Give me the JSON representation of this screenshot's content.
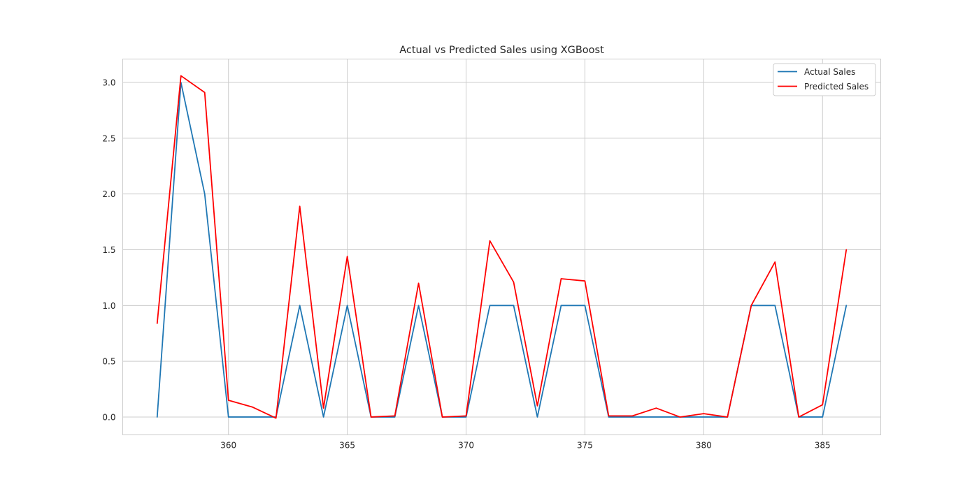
{
  "chart_data": {
    "type": "line",
    "title": "Actual vs Predicted Sales using XGBoost",
    "xlabel": "",
    "ylabel": "",
    "xlim": [
      355.55,
      387.45
    ],
    "ylim": [
      -0.16,
      3.21
    ],
    "x_ticks": [
      360,
      365,
      370,
      375,
      380,
      385
    ],
    "y_ticks": [
      0.0,
      0.5,
      1.0,
      1.5,
      2.0,
      2.5,
      3.0
    ],
    "grid": true,
    "legend_position": "top-right",
    "x": [
      357,
      358,
      359,
      360,
      361,
      362,
      363,
      364,
      365,
      366,
      367,
      368,
      369,
      370,
      371,
      372,
      373,
      374,
      375,
      376,
      377,
      378,
      379,
      380,
      381,
      382,
      383,
      384,
      385,
      386
    ],
    "series": [
      {
        "name": "Actual Sales",
        "color": "#1f77b4",
        "values": [
          0,
          3,
          2,
          0,
          0,
          0,
          1,
          0,
          1,
          0,
          0,
          1,
          0,
          0,
          1,
          1,
          0,
          1,
          1,
          0,
          0,
          0,
          0,
          0,
          0,
          1,
          1,
          0,
          0,
          1
        ]
      },
      {
        "name": "Predicted Sales",
        "color": "#ff0000",
        "values": [
          0.84,
          3.06,
          2.91,
          0.15,
          0.09,
          -0.01,
          1.89,
          0.08,
          1.44,
          0.0,
          0.01,
          1.2,
          0.0,
          0.01,
          1.58,
          1.21,
          0.1,
          1.24,
          1.22,
          0.01,
          0.01,
          0.08,
          0.0,
          0.03,
          0.0,
          1.0,
          1.39,
          0.0,
          0.11,
          1.5
        ]
      }
    ]
  }
}
